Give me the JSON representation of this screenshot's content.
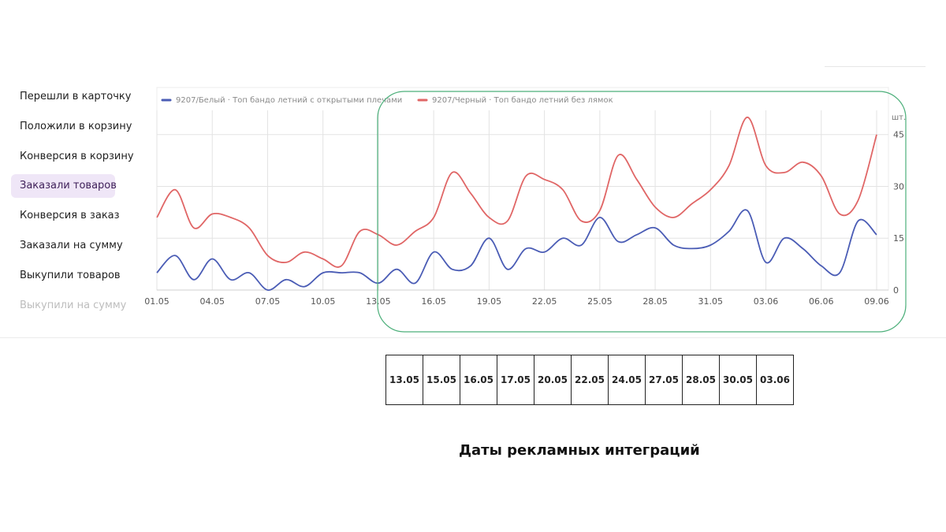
{
  "sidebar": {
    "items": [
      {
        "label": "Перешли в карточку",
        "active": false
      },
      {
        "label": "Положили в корзину",
        "active": false
      },
      {
        "label": "Конверсия в корзину",
        "active": false
      },
      {
        "label": "Заказали товаров",
        "active": true
      },
      {
        "label": "Конверсия в заказ",
        "active": false
      },
      {
        "label": "Заказали на сумму",
        "active": false
      },
      {
        "label": "Выкупили товаров",
        "active": false
      },
      {
        "label": "Выкупили на сумму",
        "active": false
      }
    ]
  },
  "chart_data": {
    "type": "line",
    "title": "",
    "xlabel": "",
    "ylabel": "шт.",
    "ylim": [
      0,
      52
    ],
    "y_ticks": [
      0,
      15,
      30,
      45
    ],
    "grid": true,
    "legend_position": "top-left",
    "x_tick_labels": [
      "01.05",
      "04.05",
      "07.05",
      "10.05",
      "13.05",
      "16.05",
      "19.05",
      "22.05",
      "25.05",
      "28.05",
      "31.05",
      "03.06",
      "06.06",
      "09.06"
    ],
    "x": [
      "01.05",
      "02.05",
      "03.05",
      "04.05",
      "05.05",
      "06.05",
      "07.05",
      "08.05",
      "09.05",
      "10.05",
      "11.05",
      "12.05",
      "13.05",
      "14.05",
      "15.05",
      "16.05",
      "17.05",
      "18.05",
      "19.05",
      "20.05",
      "21.05",
      "22.05",
      "23.05",
      "24.05",
      "25.05",
      "26.05",
      "27.05",
      "28.05",
      "29.05",
      "30.05",
      "31.05",
      "01.06",
      "02.06",
      "03.06",
      "04.06",
      "05.06",
      "06.06",
      "07.06",
      "08.06",
      "09.06",
      "10.06"
    ],
    "series": [
      {
        "name": "9207/Белый · Топ бандо летний с открытыми плечами",
        "color": "#4a5cb5",
        "values": [
          5,
          10,
          3,
          9,
          3,
          5,
          0,
          3,
          1,
          5,
          5,
          5,
          2,
          6,
          2,
          11,
          6,
          7,
          15,
          6,
          12,
          11,
          15,
          13,
          21,
          14,
          16,
          18,
          13,
          12,
          13,
          17,
          23,
          8,
          15,
          12,
          7,
          5,
          20,
          16,
          16
        ]
      },
      {
        "name": "9207/Черный · Топ бандо летний без лямок",
        "color": "#e06666",
        "values": [
          21,
          29,
          18,
          22,
          21,
          18,
          10,
          8,
          11,
          9,
          7,
          17,
          16,
          13,
          17,
          21,
          34,
          28,
          21,
          20,
          33,
          32,
          29,
          20,
          23,
          39,
          32,
          24,
          21,
          25,
          29,
          36,
          50,
          36,
          34,
          37,
          33,
          22,
          26,
          45,
          45
        ]
      }
    ]
  },
  "annotation": {
    "dates": [
      "13.05",
      "15.05",
      "16.05",
      "17.05",
      "20.05",
      "22.05",
      "24.05",
      "27.05",
      "28.05",
      "30.05",
      "03.06"
    ],
    "caption": "Даты рекламных интеграций",
    "highlight_color": "#4caf7a"
  }
}
